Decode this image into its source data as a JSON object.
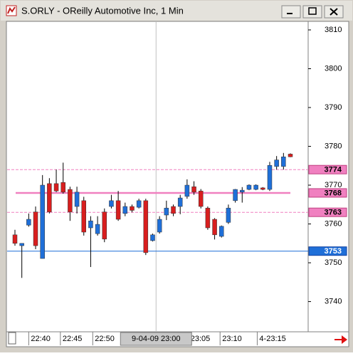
{
  "window": {
    "title": "S.ORLY - OReilly Automotive Inc, 1 Min"
  },
  "chart_data": {
    "type": "candlestick",
    "open": [
      3757.2,
      3754.4,
      3759.7,
      3763.1,
      3751.1,
      3770.4,
      3770.4,
      3770.7,
      3768.9,
      3764.5,
      3766.0,
      3759.0,
      3757.5,
      3763.1,
      3764.5,
      3766.0,
      3762.7,
      3764.5,
      3764.3,
      3766.0,
      3755.7,
      3757.9,
      3762.3,
      3764.5,
      3764.5,
      3767.1,
      3769.6,
      3768.5,
      3764.1,
      3761.2,
      3756.8,
      3760.4,
      3766.0,
      3768.2,
      3768.9,
      3768.9,
      3769.3,
      3768.9,
      3774.8,
      3774.8,
      3778.0
    ],
    "high": [
      3758.5,
      3755.0,
      3762.7,
      3764.5,
      3772.6,
      3771.8,
      3774.0,
      3775.8,
      3769.6,
      3769.6,
      3767.0,
      3762.0,
      3762.0,
      3764.0,
      3767.5,
      3768.5,
      3765.5,
      3765.0,
      3766.5,
      3766.5,
      3757.5,
      3762.0,
      3766.0,
      3765.0,
      3767.5,
      3771.5,
      3771.0,
      3769.0,
      3764.5,
      3761.5,
      3759.6,
      3765.0,
      3769.0,
      3769.5,
      3770.2,
      3770.2,
      3769.5,
      3776.0,
      3777.5,
      3778.3,
      3778.2
    ],
    "low": [
      3754.4,
      3746.1,
      3759.3,
      3753.5,
      3751.1,
      3762.7,
      3768.2,
      3767.8,
      3760.8,
      3762.7,
      3757.0,
      3748.9,
      3757.0,
      3755.3,
      3764.0,
      3760.8,
      3762.0,
      3763.0,
      3764.0,
      3752.0,
      3755.5,
      3757.5,
      3761.0,
      3762.0,
      3762.5,
      3766.5,
      3767.5,
      3764.0,
      3758.5,
      3756.0,
      3756.5,
      3760.0,
      3765.5,
      3765.5,
      3768.7,
      3768.7,
      3768.7,
      3768.5,
      3774.0,
      3774.0,
      3777.2
    ],
    "close": [
      3755.0,
      3755.0,
      3761.2,
      3754.4,
      3770.0,
      3763.1,
      3768.5,
      3768.2,
      3763.1,
      3768.2,
      3757.9,
      3760.8,
      3759.9,
      3756.1,
      3766.0,
      3761.2,
      3764.5,
      3763.5,
      3766.0,
      3752.6,
      3757.2,
      3761.2,
      3764.1,
      3762.7,
      3766.7,
      3770.0,
      3768.2,
      3764.5,
      3759.0,
      3757.2,
      3759.4,
      3764.1,
      3768.9,
      3768.7,
      3770.0,
      3770.0,
      3768.9,
      3775.1,
      3776.5,
      3777.3,
      3777.3
    ],
    "up_color": "#1f6fd8",
    "down_color": "#d81e1e",
    "ylim": [
      3732.4,
      3812.2
    ],
    "yticks": [
      3740,
      3750,
      3760,
      3770,
      3780,
      3790,
      3800,
      3810
    ],
    "xlim": [
      -1.14,
      42.6
    ],
    "xticks": [
      {
        "value": 2,
        "label": "22:40"
      },
      {
        "value": 6.6,
        "label": "22:45"
      },
      {
        "value": 11.3,
        "label": "22:50"
      },
      {
        "value": 25.2,
        "label": "23:05"
      },
      {
        "value": 29.8,
        "label": "23:10"
      },
      {
        "value": 35.2,
        "label": "4-23:15"
      }
    ],
    "cursor": {
      "value": 20.5,
      "label": "9-04-09  23:00"
    },
    "levels": {
      "values": [
        3774,
        3768,
        3763,
        3753
      ],
      "colors": [
        "#f080c0",
        "#f080c0",
        "#f080c0",
        "#1f6fd8"
      ],
      "styles": [
        "dashed",
        "solid",
        "dashed",
        "solid"
      ]
    }
  }
}
